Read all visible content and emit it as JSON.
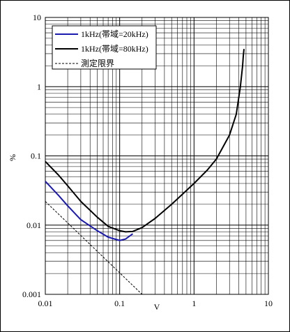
{
  "chart_data": {
    "type": "line",
    "title": "",
    "xlabel": "V",
    "ylabel": "%",
    "x_scale": "log",
    "y_scale": "log",
    "xlim": [
      0.01,
      10
    ],
    "ylim": [
      0.001,
      10
    ],
    "grid": true,
    "legend_position": "top-left",
    "x_tick_labels": [
      "0.01",
      "0.1",
      "1",
      "10"
    ],
    "y_tick_labels": [
      "0.001",
      "0.01",
      "0.1",
      "1",
      "10"
    ],
    "series": [
      {
        "name": "1kHz(帯域=20kHz)",
        "color": "#1a1ab0",
        "style": "solid",
        "x": [
          0.01,
          0.015,
          0.02,
          0.03,
          0.05,
          0.07,
          0.1,
          0.12,
          0.15
        ],
        "y": [
          0.043,
          0.027,
          0.019,
          0.012,
          0.0083,
          0.0067,
          0.006,
          0.0063,
          0.0075
        ]
      },
      {
        "name": "1kHz(帯域=80kHz)",
        "color": "#000000",
        "style": "solid",
        "x": [
          0.01,
          0.015,
          0.02,
          0.03,
          0.05,
          0.07,
          0.1,
          0.12,
          0.15,
          0.2,
          0.3,
          0.5,
          0.7,
          1,
          1.5,
          2,
          3,
          3.7,
          4.2,
          4.5,
          4.6,
          4.7
        ],
        "y": [
          0.083,
          0.053,
          0.037,
          0.022,
          0.013,
          0.0096,
          0.0083,
          0.008,
          0.0081,
          0.0092,
          0.0125,
          0.02,
          0.028,
          0.04,
          0.062,
          0.09,
          0.2,
          0.4,
          1.0,
          2.0,
          2.8,
          3.5
        ]
      },
      {
        "name": "測定限界",
        "color": "#000000",
        "style": "dashed",
        "x": [
          0.01,
          0.2
        ],
        "y": [
          0.022,
          0.001
        ]
      }
    ]
  }
}
